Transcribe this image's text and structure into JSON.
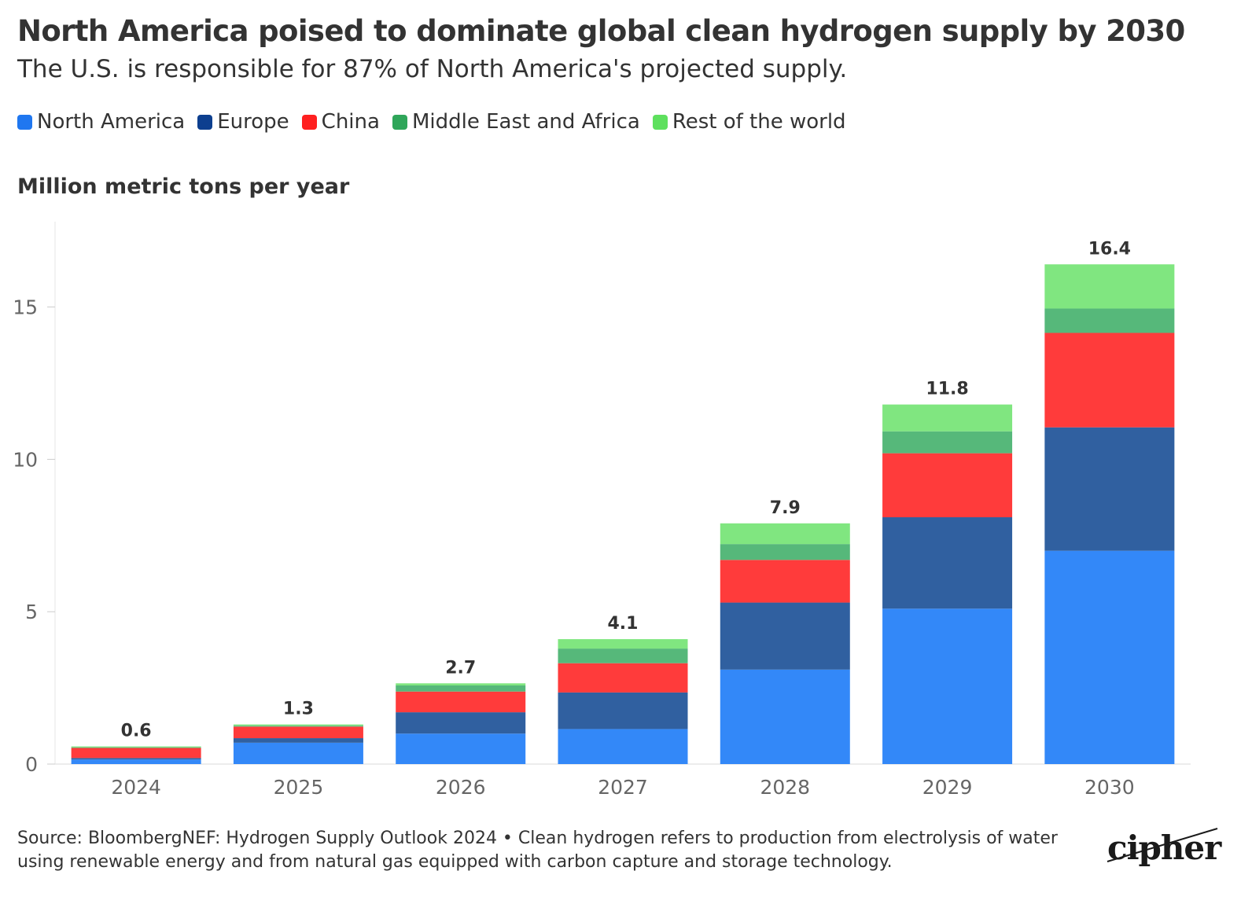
{
  "title": "North America poised to dominate global clean hydrogen supply by 2030",
  "subtitle": "The U.S. is responsible for 87% of North America's projected supply.",
  "footer": "Source: BloombergNEF: Hydrogen Supply Outlook 2024 • Clean hydrogen refers to production from electrolysis of water using renewable energy and from natural gas equipped with carbon capture and storage technology.",
  "logo_text": "cipher",
  "chart_data": {
    "type": "bar",
    "stacked": true,
    "ylabel": "Million metric tons per year",
    "ylim": [
      0,
      17.8
    ],
    "yticks": [
      0,
      5,
      10,
      15
    ],
    "grid": false,
    "legend_position": "top-left",
    "categories": [
      "2024",
      "2025",
      "2026",
      "2027",
      "2028",
      "2029",
      "2030"
    ],
    "totals": [
      "0.6",
      "1.3",
      "2.7",
      "4.1",
      "7.9",
      "11.8",
      "16.4"
    ],
    "series": [
      {
        "name": "North America",
        "color": "#3388F8",
        "values": [
          0.15,
          0.7,
          1.0,
          1.15,
          3.1,
          5.1,
          7.0
        ]
      },
      {
        "name": "Europe",
        "color": "#3060A0",
        "values": [
          0.05,
          0.15,
          0.7,
          1.2,
          2.2,
          3.0,
          4.05
        ]
      },
      {
        "name": "China",
        "color": "#FF3B3B",
        "values": [
          0.33,
          0.38,
          0.68,
          0.96,
          1.4,
          2.1,
          3.1
        ]
      },
      {
        "name": "Middle East and Africa",
        "color": "#56B87A",
        "values": [
          0.02,
          0.03,
          0.2,
          0.48,
          0.52,
          0.72,
          0.8
        ]
      },
      {
        "name": "Rest of the world",
        "color": "#80E680",
        "values": [
          0.03,
          0.04,
          0.07,
          0.31,
          0.68,
          0.88,
          1.45
        ]
      }
    ],
    "legend_colors": [
      "#1F77F0",
      "#0D3F8F",
      "#FF2020",
      "#2FA65A",
      "#5EE05E"
    ]
  }
}
